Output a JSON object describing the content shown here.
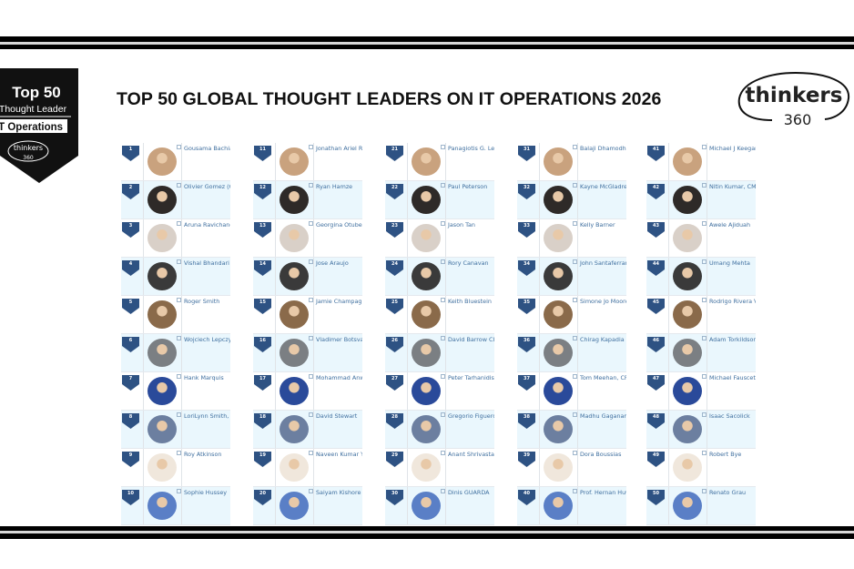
{
  "title": "TOP 50 GLOBAL THOUGHT LEADERS ON IT OPERATIONS 2026",
  "badge": {
    "line1": "Top 50",
    "line2": "Thought Leader",
    "line3": "IT Operations",
    "brand": "thinkers",
    "brand_num": "360"
  },
  "logo": {
    "brand": "thinkers",
    "brand_num": "360"
  },
  "colors": {
    "rank_badge": "#2e5283",
    "name_link": "#3f6f9f",
    "row_alt": "#eaf7fd"
  },
  "leaders": [
    {
      "rank": "1",
      "name": "Gousama Bachiar TAISE"
    },
    {
      "rank": "2",
      "name": "Olivier Gomez (OG)"
    },
    {
      "rank": "3",
      "name": "Aruna Ravichandran"
    },
    {
      "rank": "4",
      "name": "Vishal Bhandari"
    },
    {
      "rank": "5",
      "name": "Roger Smith"
    },
    {
      "rank": "6",
      "name": "Wojciech Lepczynski"
    },
    {
      "rank": "7",
      "name": "Hank Marquis"
    },
    {
      "rank": "8",
      "name": "LoriLynn Smith, MSA"
    },
    {
      "rank": "9",
      "name": "Roy Atkinson"
    },
    {
      "rank": "10",
      "name": "Sophie Hussey"
    },
    {
      "rank": "11",
      "name": "Jonathan Ariel Ruiz"
    },
    {
      "rank": "12",
      "name": "Ryan Hamze"
    },
    {
      "rank": "13",
      "name": "Georgina Otubela"
    },
    {
      "rank": "14",
      "name": "Jose Araujo"
    },
    {
      "rank": "15",
      "name": "Jamie Champagne"
    },
    {
      "rank": "16",
      "name": "Vladimer Botsvadze"
    },
    {
      "rank": "17",
      "name": "Mohammad Anwar"
    },
    {
      "rank": "18",
      "name": "David Stewart"
    },
    {
      "rank": "19",
      "name": "Naveen Kumar Yelli"
    },
    {
      "rank": "20",
      "name": "Saiyam Kishore"
    },
    {
      "rank": "21",
      "name": "Panagiotis G. Lendaris"
    },
    {
      "rank": "22",
      "name": "Paul Peterson"
    },
    {
      "rank": "23",
      "name": "Jason Tan"
    },
    {
      "rank": "24",
      "name": "Rory Canavan"
    },
    {
      "rank": "25",
      "name": "Keith Bluestein"
    },
    {
      "rank": "26",
      "name": "David Barrow CITP FBCS"
    },
    {
      "rank": "27",
      "name": "Peter Tarhanidis, Ph.D."
    },
    {
      "rank": "28",
      "name": "Gregorio Figueroa"
    },
    {
      "rank": "29",
      "name": "Anant Shrivastava"
    },
    {
      "rank": "30",
      "name": "Dinis GUARDA"
    },
    {
      "rank": "31",
      "name": "Balaji Dhamodharan"
    },
    {
      "rank": "32",
      "name": "Kayne McGladrey"
    },
    {
      "rank": "33",
      "name": "Kelly Barner"
    },
    {
      "rank": "34",
      "name": "John Santaferraro"
    },
    {
      "rank": "35",
      "name": "Simone Jo Moore"
    },
    {
      "rank": "36",
      "name": "Chirag Kapadia"
    },
    {
      "rank": "37",
      "name": "Tom Meehan, CFE"
    },
    {
      "rank": "38",
      "name": "Madhu Gaganam"
    },
    {
      "rank": "39",
      "name": "Dora Boussias"
    },
    {
      "rank": "40",
      "name": "Prof. Hernan Huwyler"
    },
    {
      "rank": "41",
      "name": "Michael J Keegan"
    },
    {
      "rank": "42",
      "name": "Nitin Kumar, CMC"
    },
    {
      "rank": "43",
      "name": "Awele Ajiduah"
    },
    {
      "rank": "44",
      "name": "Umang Mehta"
    },
    {
      "rank": "45",
      "name": "Rodrigo Rivera Villa"
    },
    {
      "rank": "46",
      "name": "Adam Torkildson"
    },
    {
      "rank": "47",
      "name": "Michael Fauscette"
    },
    {
      "rank": "48",
      "name": "Isaac Sacolick"
    },
    {
      "rank": "49",
      "name": "Robert Bye"
    },
    {
      "rank": "50",
      "name": "Renato Grau"
    }
  ]
}
